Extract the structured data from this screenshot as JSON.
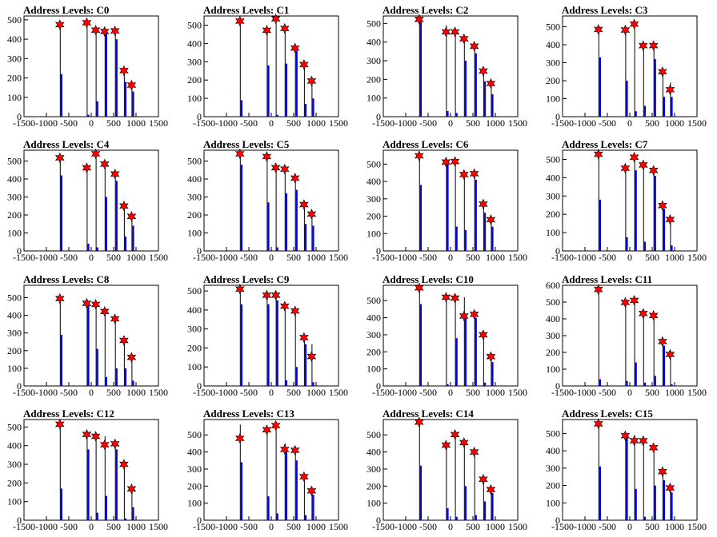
{
  "chart_data": {
    "type": "bar",
    "x_ticks": [
      -1500,
      -1000,
      -500,
      0,
      500,
      1000,
      1500
    ],
    "xlim": [
      -1500,
      1500
    ],
    "grid": false,
    "bar_color": "#0000ff",
    "marker_color": "#ff0000",
    "panels": [
      {
        "title": "Address Levels: C0",
        "ylim": [
          0,
          520
        ],
        "y_ticks": [
          0,
          100,
          200,
          300,
          400,
          500
        ],
        "peaks": [
          {
            "x": -700,
            "h": 470,
            "bar": 220,
            "m": 475
          },
          {
            "x": -100,
            "h": 480,
            "bar": 10,
            "m": 485
          },
          {
            "x": 100,
            "h": 440,
            "bar": 80,
            "m": 447
          },
          {
            "x": 300,
            "h": 440,
            "bar": 440,
            "m": 440
          },
          {
            "x": 530,
            "h": 440,
            "bar": 400,
            "m": 443
          },
          {
            "x": 730,
            "h": 230,
            "bar": 180,
            "m": 238
          },
          {
            "x": 900,
            "h": 160,
            "bar": 130,
            "m": 163
          }
        ]
      },
      {
        "title": "Address Levels: C1",
        "ylim": [
          0,
          550
        ],
        "y_ticks": [
          0,
          100,
          200,
          300,
          400,
          500
        ],
        "peaks": [
          {
            "x": -700,
            "h": 520,
            "bar": 90,
            "m": 522
          },
          {
            "x": -100,
            "h": 470,
            "bar": 280,
            "m": 472
          },
          {
            "x": 100,
            "h": 540,
            "bar": 10,
            "m": 535
          },
          {
            "x": 300,
            "h": 480,
            "bar": 290,
            "m": 482
          },
          {
            "x": 530,
            "h": 370,
            "bar": 360,
            "m": 375
          },
          {
            "x": 730,
            "h": 280,
            "bar": 70,
            "m": 285
          },
          {
            "x": 900,
            "h": 190,
            "bar": 100,
            "m": 195
          }
        ]
      },
      {
        "title": "Address Levels: C2",
        "ylim": [
          0,
          540
        ],
        "y_ticks": [
          0,
          100,
          200,
          300,
          400,
          500
        ],
        "peaks": [
          {
            "x": -700,
            "h": 520,
            "bar": 520,
            "m": 522
          },
          {
            "x": -100,
            "h": 490,
            "bar": 30,
            "m": 455
          },
          {
            "x": 100,
            "h": 470,
            "bar": 20,
            "m": 455
          },
          {
            "x": 300,
            "h": 430,
            "bar": 300,
            "m": 418
          },
          {
            "x": 530,
            "h": 380,
            "bar": 340,
            "m": 378
          },
          {
            "x": 730,
            "h": 240,
            "bar": 190,
            "m": 245
          },
          {
            "x": 900,
            "h": 180,
            "bar": 120,
            "m": 178
          }
        ]
      },
      {
        "title": "Address Levels: C3",
        "ylim": [
          0,
          560
        ],
        "y_ticks": [
          0,
          100,
          200,
          300,
          400,
          500
        ],
        "peaks": [
          {
            "x": -700,
            "h": 500,
            "bar": 330,
            "m": 485
          },
          {
            "x": -100,
            "h": 490,
            "bar": 200,
            "m": 482
          },
          {
            "x": 100,
            "h": 520,
            "bar": 30,
            "m": 515
          },
          {
            "x": 300,
            "h": 400,
            "bar": 60,
            "m": 395
          },
          {
            "x": 530,
            "h": 400,
            "bar": 320,
            "m": 395
          },
          {
            "x": 730,
            "h": 250,
            "bar": 110,
            "m": 250
          },
          {
            "x": 900,
            "h": 190,
            "bar": 110,
            "m": 150
          }
        ]
      },
      {
        "title": "Address Levels: C4",
        "ylim": [
          0,
          560
        ],
        "y_ticks": [
          0,
          100,
          200,
          300,
          400,
          500
        ],
        "peaks": [
          {
            "x": -700,
            "h": 510,
            "bar": 420,
            "m": 518
          },
          {
            "x": -100,
            "h": 470,
            "bar": 40,
            "m": 462
          },
          {
            "x": 100,
            "h": 540,
            "bar": 20,
            "m": 540
          },
          {
            "x": 300,
            "h": 490,
            "bar": 300,
            "m": 483
          },
          {
            "x": 530,
            "h": 430,
            "bar": 390,
            "m": 428
          },
          {
            "x": 730,
            "h": 250,
            "bar": 80,
            "m": 250
          },
          {
            "x": 900,
            "h": 195,
            "bar": 140,
            "m": 192
          }
        ]
      },
      {
        "title": "Address Levels: C5",
        "ylim": [
          0,
          560
        ],
        "y_ticks": [
          0,
          100,
          200,
          300,
          400,
          500
        ],
        "peaks": [
          {
            "x": -700,
            "h": 540,
            "bar": 480,
            "m": 540
          },
          {
            "x": -100,
            "h": 530,
            "bar": 270,
            "m": 525
          },
          {
            "x": 100,
            "h": 460,
            "bar": 20,
            "m": 463
          },
          {
            "x": 300,
            "h": 470,
            "bar": 320,
            "m": 455
          },
          {
            "x": 530,
            "h": 400,
            "bar": 340,
            "m": 405
          },
          {
            "x": 730,
            "h": 260,
            "bar": 150,
            "m": 258
          },
          {
            "x": 900,
            "h": 210,
            "bar": 140,
            "m": 205
          }
        ]
      },
      {
        "title": "Address Levels: C6",
        "ylim": [
          0,
          580
        ],
        "y_ticks": [
          0,
          100,
          200,
          300,
          400,
          500
        ],
        "peaks": [
          {
            "x": -700,
            "h": 560,
            "bar": 380,
            "m": 548
          },
          {
            "x": -100,
            "h": 520,
            "bar": 500,
            "m": 512
          },
          {
            "x": 100,
            "h": 510,
            "bar": 140,
            "m": 515
          },
          {
            "x": 300,
            "h": 440,
            "bar": 120,
            "m": 440
          },
          {
            "x": 530,
            "h": 440,
            "bar": 410,
            "m": 445
          },
          {
            "x": 730,
            "h": 270,
            "bar": 220,
            "m": 270
          },
          {
            "x": 900,
            "h": 180,
            "bar": 140,
            "m": 180
          }
        ]
      },
      {
        "title": "Address Levels: C7",
        "ylim": [
          0,
          550
        ],
        "y_ticks": [
          0,
          100,
          200,
          300,
          400,
          500
        ],
        "peaks": [
          {
            "x": -700,
            "h": 530,
            "bar": 280,
            "m": 528
          },
          {
            "x": -100,
            "h": 470,
            "bar": 75,
            "m": 452
          },
          {
            "x": 100,
            "h": 510,
            "bar": 440,
            "m": 512
          },
          {
            "x": 300,
            "h": 470,
            "bar": 50,
            "m": 470
          },
          {
            "x": 530,
            "h": 440,
            "bar": 410,
            "m": 440
          },
          {
            "x": 730,
            "h": 250,
            "bar": 230,
            "m": 248
          },
          {
            "x": 900,
            "h": 180,
            "bar": 30,
            "m": 172
          }
        ]
      },
      {
        "title": "Address Levels: C8",
        "ylim": [
          0,
          570
        ],
        "y_ticks": [
          0,
          100,
          200,
          300,
          400,
          500
        ],
        "peaks": [
          {
            "x": -700,
            "h": 490,
            "bar": 290,
            "m": 495
          },
          {
            "x": -100,
            "h": 490,
            "bar": 460,
            "m": 468
          },
          {
            "x": 100,
            "h": 460,
            "bar": 210,
            "m": 462
          },
          {
            "x": 300,
            "h": 440,
            "bar": 50,
            "m": 422
          },
          {
            "x": 530,
            "h": 380,
            "bar": 100,
            "m": 380
          },
          {
            "x": 730,
            "h": 260,
            "bar": 100,
            "m": 258
          },
          {
            "x": 900,
            "h": 165,
            "bar": 30,
            "m": 162
          }
        ]
      },
      {
        "title": "Address Levels: C9",
        "ylim": [
          0,
          530
        ],
        "y_ticks": [
          0,
          100,
          200,
          300,
          400,
          500
        ],
        "peaks": [
          {
            "x": -700,
            "h": 510,
            "bar": 430,
            "m": 510
          },
          {
            "x": -100,
            "h": 480,
            "bar": 430,
            "m": 478
          },
          {
            "x": 100,
            "h": 480,
            "bar": 450,
            "m": 478
          },
          {
            "x": 300,
            "h": 430,
            "bar": 30,
            "m": 420
          },
          {
            "x": 530,
            "h": 395,
            "bar": 100,
            "m": 395
          },
          {
            "x": 730,
            "h": 260,
            "bar": 220,
            "m": 255
          },
          {
            "x": 900,
            "h": 220,
            "bar": 20,
            "m": 155
          }
        ]
      },
      {
        "title": "Address Levels: C10",
        "ylim": [
          0,
          590
        ],
        "y_ticks": [
          0,
          100,
          200,
          300,
          400,
          500
        ],
        "peaks": [
          {
            "x": -700,
            "h": 570,
            "bar": 480,
            "m": 575
          },
          {
            "x": -100,
            "h": 520,
            "bar": 10,
            "m": 520
          },
          {
            "x": 100,
            "h": 520,
            "bar": 280,
            "m": 515
          },
          {
            "x": 300,
            "h": 520,
            "bar": 400,
            "m": 410
          },
          {
            "x": 530,
            "h": 420,
            "bar": 400,
            "m": 420
          },
          {
            "x": 730,
            "h": 300,
            "bar": 20,
            "m": 300
          },
          {
            "x": 900,
            "h": 175,
            "bar": 140,
            "m": 172
          }
        ]
      },
      {
        "title": "Address Levels: C11",
        "ylim": [
          0,
          600
        ],
        "y_ticks": [
          0,
          100,
          200,
          300,
          400,
          500,
          600
        ],
        "peaks": [
          {
            "x": -700,
            "h": 580,
            "bar": 40,
            "m": 575
          },
          {
            "x": -100,
            "h": 500,
            "bar": 30,
            "m": 498
          },
          {
            "x": 100,
            "h": 510,
            "bar": 140,
            "m": 510
          },
          {
            "x": 300,
            "h": 430,
            "bar": 20,
            "m": 432
          },
          {
            "x": 530,
            "h": 420,
            "bar": 60,
            "m": 420
          },
          {
            "x": 730,
            "h": 270,
            "bar": 240,
            "m": 265
          },
          {
            "x": 900,
            "h": 190,
            "bar": 10,
            "m": 188
          }
        ]
      },
      {
        "title": "Address Levels: C12",
        "ylim": [
          0,
          540
        ],
        "y_ticks": [
          0,
          100,
          200,
          300,
          400,
          500
        ],
        "peaks": [
          {
            "x": -700,
            "h": 520,
            "bar": 170,
            "m": 515
          },
          {
            "x": -100,
            "h": 480,
            "bar": 380,
            "m": 460
          },
          {
            "x": 100,
            "h": 460,
            "bar": 40,
            "m": 450
          },
          {
            "x": 300,
            "h": 450,
            "bar": 130,
            "m": 405
          },
          {
            "x": 530,
            "h": 420,
            "bar": 380,
            "m": 410
          },
          {
            "x": 730,
            "h": 300,
            "bar": 10,
            "m": 300
          },
          {
            "x": 900,
            "h": 170,
            "bar": 70,
            "m": 168
          }
        ]
      },
      {
        "title": "Address Levels: C13",
        "ylim": [
          0,
          590
        ],
        "y_ticks": [
          0,
          100,
          200,
          300,
          400,
          500
        ],
        "peaks": [
          {
            "x": -700,
            "h": 560,
            "bar": 340,
            "m": 480
          },
          {
            "x": -100,
            "h": 530,
            "bar": 140,
            "m": 530
          },
          {
            "x": 100,
            "h": 550,
            "bar": 40,
            "m": 555
          },
          {
            "x": 300,
            "h": 450,
            "bar": 420,
            "m": 415
          },
          {
            "x": 530,
            "h": 410,
            "bar": 350,
            "m": 410
          },
          {
            "x": 730,
            "h": 260,
            "bar": 30,
            "m": 255
          },
          {
            "x": 900,
            "h": 180,
            "bar": 150,
            "m": 172
          }
        ]
      },
      {
        "title": "Address Levels: C14",
        "ylim": [
          0,
          590
        ],
        "y_ticks": [
          0,
          100,
          200,
          300,
          400,
          500
        ],
        "peaks": [
          {
            "x": -700,
            "h": 570,
            "bar": 320,
            "m": 575
          },
          {
            "x": -100,
            "h": 440,
            "bar": 70,
            "m": 440
          },
          {
            "x": 100,
            "h": 500,
            "bar": 20,
            "m": 502
          },
          {
            "x": 300,
            "h": 460,
            "bar": 200,
            "m": 455
          },
          {
            "x": 530,
            "h": 400,
            "bar": 30,
            "m": 400
          },
          {
            "x": 730,
            "h": 240,
            "bar": 110,
            "m": 240
          },
          {
            "x": 900,
            "h": 180,
            "bar": 160,
            "m": 180
          }
        ]
      },
      {
        "title": "Address Levels: C15",
        "ylim": [
          0,
          580
        ],
        "y_ticks": [
          0,
          100,
          200,
          300,
          400,
          500
        ],
        "peaks": [
          {
            "x": -700,
            "h": 560,
            "bar": 310,
            "m": 555
          },
          {
            "x": -100,
            "h": 490,
            "bar": 480,
            "m": 487
          },
          {
            "x": 100,
            "h": 490,
            "bar": 180,
            "m": 458
          },
          {
            "x": 300,
            "h": 470,
            "bar": 20,
            "m": 458
          },
          {
            "x": 530,
            "h": 420,
            "bar": 200,
            "m": 418
          },
          {
            "x": 730,
            "h": 280,
            "bar": 230,
            "m": 280
          },
          {
            "x": 900,
            "h": 190,
            "bar": 160,
            "m": 186
          }
        ]
      }
    ]
  }
}
